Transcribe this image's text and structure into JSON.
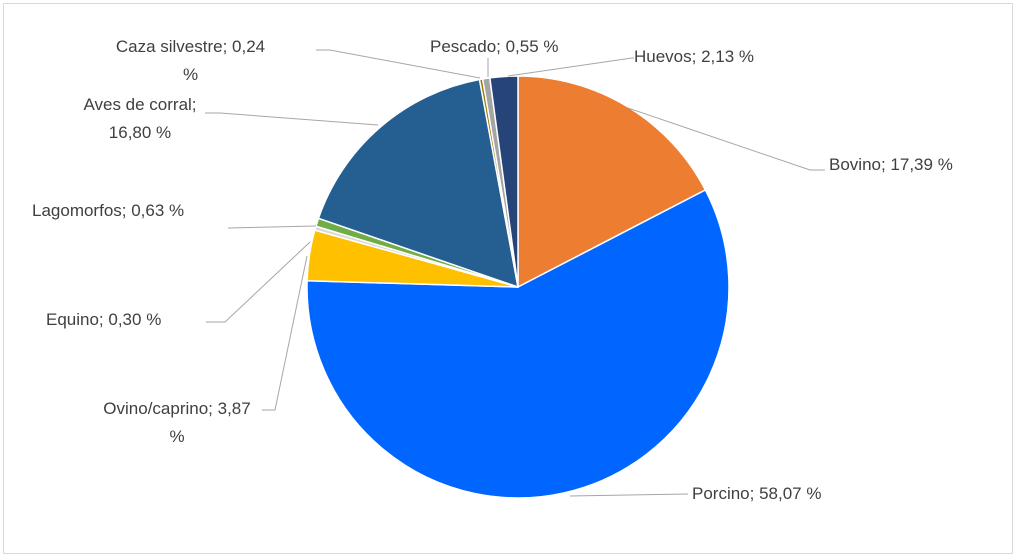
{
  "chart_data": {
    "type": "pie",
    "labels": [
      "Bovino; 17,39 %",
      "Porcino; 58,07 %",
      "Ovino/caprino; 3,87 %",
      "Equino; 0,30 %",
      "Lagomorfos; 0,63 %",
      "Aves de corral; 16,80 %",
      "Caza silvestre; 0,24 %",
      "Pescado; 0,55 %",
      "Huevos; 2,13 %"
    ],
    "values": [
      17.39,
      58.07,
      3.87,
      0.3,
      0.63,
      16.8,
      0.24,
      0.55,
      2.13
    ],
    "colors": [
      "#ed7d31",
      "#0066ff",
      "#ffc000",
      "#d9d9d9",
      "#70ad47",
      "#255e91",
      "#9e7a00",
      "#a5a5a5",
      "#264478"
    ]
  }
}
